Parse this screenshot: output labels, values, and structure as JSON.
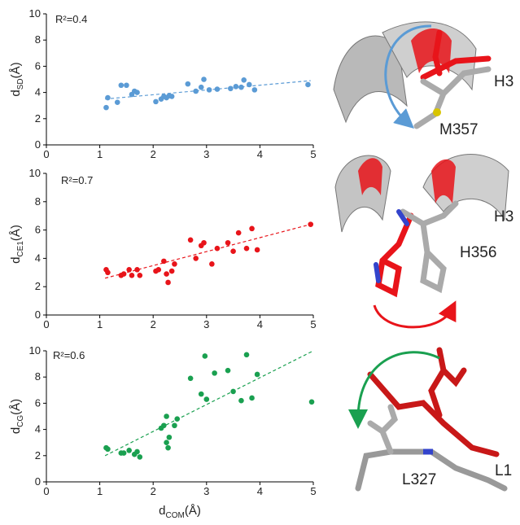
{
  "chart_data": [
    {
      "type": "scatter",
      "color": "#5b9bd5",
      "annotation": "R²=0.4",
      "ylabel": [
        "d",
        "SD",
        "(Å)"
      ],
      "xlim": [
        0,
        5
      ],
      "xticks": [
        0,
        1,
        2,
        3,
        4,
        5
      ],
      "ylim": [
        0,
        10
      ],
      "yticks": [
        0,
        2,
        4,
        6,
        8,
        10
      ],
      "x": [
        1.12,
        1.15,
        1.33,
        1.4,
        1.5,
        1.6,
        1.65,
        1.7,
        2.05,
        2.15,
        2.2,
        2.25,
        2.3,
        2.35,
        2.65,
        2.8,
        2.9,
        2.95,
        3.05,
        3.2,
        3.45,
        3.55,
        3.65,
        3.7,
        3.8,
        3.9,
        4.9
      ],
      "y": [
        2.85,
        3.6,
        3.25,
        4.55,
        4.55,
        3.85,
        4.1,
        4.0,
        3.3,
        3.5,
        3.7,
        3.6,
        3.75,
        3.7,
        4.65,
        4.1,
        4.4,
        5.0,
        4.2,
        4.25,
        4.3,
        4.45,
        4.4,
        4.95,
        4.6,
        4.2,
        4.6
      ],
      "trendline": {
        "x": [
          1.1,
          4.95
        ],
        "y": [
          3.5,
          4.9
        ]
      }
    },
    {
      "type": "scatter",
      "color": "#e8141a",
      "annotation": "R²=0.7",
      "ylabel": [
        "d",
        "CE1",
        "(Å)"
      ],
      "xlim": [
        0,
        5
      ],
      "xticks": [
        0,
        1,
        2,
        3,
        4,
        5
      ],
      "ylim": [
        0,
        10
      ],
      "yticks": [
        0,
        2,
        4,
        6,
        8,
        10
      ],
      "x": [
        1.12,
        1.15,
        1.4,
        1.45,
        1.55,
        1.6,
        1.7,
        1.75,
        2.05,
        2.1,
        2.2,
        2.25,
        2.28,
        2.35,
        2.4,
        2.7,
        2.8,
        2.9,
        2.95,
        3.1,
        3.2,
        3.4,
        3.5,
        3.6,
        3.75,
        3.85,
        3.95,
        4.95
      ],
      "y": [
        3.2,
        3.0,
        2.8,
        2.9,
        3.2,
        2.8,
        3.2,
        2.8,
        3.1,
        3.2,
        3.8,
        2.9,
        2.3,
        3.1,
        3.6,
        5.3,
        4.0,
        4.9,
        5.1,
        3.6,
        4.7,
        5.1,
        4.5,
        5.8,
        4.7,
        6.1,
        4.6,
        6.4
      ],
      "trendline": {
        "x": [
          1.1,
          4.95
        ],
        "y": [
          2.6,
          6.4
        ]
      }
    },
    {
      "type": "scatter",
      "color": "#1aa050",
      "annotation": "R²=0.6",
      "ylabel": [
        "d",
        "CG",
        "(Å)"
      ],
      "xlabel": [
        "d",
        "COM",
        "(Å)"
      ],
      "xlim": [
        0,
        5
      ],
      "xticks": [
        0,
        1,
        2,
        3,
        4,
        5
      ],
      "ylim": [
        0,
        10
      ],
      "yticks": [
        0,
        2,
        4,
        6,
        8,
        10
      ],
      "x": [
        1.12,
        1.15,
        1.4,
        1.45,
        1.55,
        1.65,
        1.7,
        1.75,
        2.15,
        2.2,
        2.25,
        2.25,
        2.28,
        2.3,
        2.4,
        2.45,
        2.7,
        2.9,
        2.97,
        3.0,
        3.15,
        3.4,
        3.5,
        3.65,
        3.75,
        3.85,
        3.95,
        4.97
      ],
      "y": [
        2.6,
        2.5,
        2.2,
        2.2,
        2.4,
        2.1,
        2.3,
        1.9,
        4.1,
        4.3,
        5.0,
        3.0,
        2.6,
        3.4,
        4.3,
        4.8,
        7.9,
        6.7,
        9.6,
        6.3,
        8.3,
        8.5,
        6.9,
        6.2,
        9.7,
        6.4,
        8.2,
        6.1
      ],
      "trendline": {
        "x": [
          1.1,
          5.0
        ],
        "y": [
          2.0,
          10.0
        ]
      }
    }
  ],
  "structure_labels": [
    [
      "H3",
      "M357"
    ],
    [
      "H3",
      "H356"
    ],
    [
      "L1",
      "L327"
    ]
  ]
}
